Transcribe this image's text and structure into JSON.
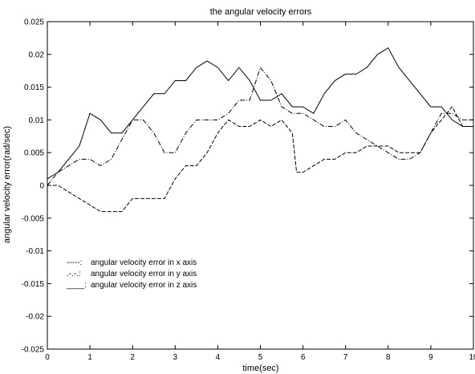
{
  "chart_data": {
    "type": "line",
    "title": "the angular velocity errors",
    "xlabel": "time(sec)",
    "ylabel": "angular velocity error(rad/sec)",
    "xlim": [
      0,
      10
    ],
    "ylim": [
      -0.025,
      0.025
    ],
    "x_ticks": [
      "0",
      "1",
      "2",
      "3",
      "4",
      "5",
      "6",
      "7",
      "8",
      "9",
      "10"
    ],
    "y_ticks": [
      "0.025",
      "0.02",
      "0.015",
      "0.01",
      "0.005",
      "0",
      "-0.005",
      "-0.01",
      "-0.015",
      "-0.02",
      "-0.025"
    ],
    "grid": false,
    "legend_position": "lower-left",
    "series": [
      {
        "name": "angular velocity error in x axis",
        "legend_prefix": "-----:",
        "style": "dashed",
        "x": [
          0,
          0.25,
          0.5,
          0.75,
          1.0,
          1.25,
          1.5,
          1.75,
          2.0,
          2.25,
          2.5,
          2.75,
          3.0,
          3.25,
          3.5,
          3.75,
          4.0,
          4.25,
          4.5,
          4.75,
          5.0,
          5.25,
          5.5,
          5.75,
          5.85,
          6.0,
          6.25,
          6.5,
          6.75,
          7.0,
          7.25,
          7.5,
          7.75,
          8.0,
          8.25,
          8.5,
          8.75,
          9.0,
          9.25,
          9.5,
          9.75,
          10.0
        ],
        "values": [
          0.0,
          0.0,
          -0.001,
          -0.002,
          -0.003,
          -0.004,
          -0.004,
          -0.004,
          -0.002,
          -0.002,
          -0.002,
          -0.002,
          0.001,
          0.003,
          0.003,
          0.005,
          0.008,
          0.01,
          0.009,
          0.009,
          0.01,
          0.009,
          0.01,
          0.008,
          0.002,
          0.002,
          0.003,
          0.004,
          0.004,
          0.005,
          0.005,
          0.006,
          0.006,
          0.006,
          0.005,
          0.005,
          0.005,
          0.008,
          0.01,
          0.012,
          0.009,
          0.009
        ]
      },
      {
        "name": "angular velocity error in y axis",
        "legend_prefix": ".-.-.:",
        "style": "dashdot",
        "x": [
          0,
          0.25,
          0.5,
          0.75,
          1.0,
          1.25,
          1.5,
          1.75,
          2.0,
          2.25,
          2.5,
          2.75,
          3.0,
          3.25,
          3.5,
          3.75,
          4.0,
          4.25,
          4.5,
          4.75,
          5.0,
          5.25,
          5.5,
          5.75,
          6.0,
          6.25,
          6.5,
          6.75,
          7.0,
          7.25,
          7.5,
          7.75,
          8.0,
          8.25,
          8.5,
          8.75,
          9.0,
          9.25,
          9.5,
          9.75,
          10.0
        ],
        "values": [
          0.0,
          0.002,
          0.003,
          0.004,
          0.004,
          0.003,
          0.004,
          0.007,
          0.01,
          0.01,
          0.008,
          0.005,
          0.005,
          0.008,
          0.01,
          0.01,
          0.01,
          0.011,
          0.013,
          0.013,
          0.018,
          0.016,
          0.012,
          0.011,
          0.011,
          0.01,
          0.009,
          0.009,
          0.01,
          0.008,
          0.007,
          0.006,
          0.005,
          0.004,
          0.004,
          0.005,
          0.008,
          0.011,
          0.011,
          0.01,
          0.01
        ]
      },
      {
        "name": "angular velocity error in z axis",
        "legend_prefix": "____:",
        "style": "solid",
        "x": [
          0,
          0.25,
          0.5,
          0.75,
          1.0,
          1.25,
          1.5,
          1.75,
          2.0,
          2.25,
          2.5,
          2.75,
          3.0,
          3.25,
          3.5,
          3.75,
          4.0,
          4.25,
          4.5,
          4.75,
          5.0,
          5.25,
          5.5,
          5.75,
          6.0,
          6.25,
          6.5,
          6.75,
          7.0,
          7.25,
          7.5,
          7.75,
          8.0,
          8.25,
          8.5,
          8.75,
          9.0,
          9.25,
          9.5,
          9.75,
          10.0
        ],
        "values": [
          0.001,
          0.002,
          0.004,
          0.006,
          0.011,
          0.01,
          0.008,
          0.008,
          0.01,
          0.012,
          0.014,
          0.014,
          0.016,
          0.016,
          0.018,
          0.019,
          0.018,
          0.016,
          0.018,
          0.016,
          0.013,
          0.013,
          0.014,
          0.012,
          0.012,
          0.011,
          0.014,
          0.016,
          0.017,
          0.017,
          0.018,
          0.02,
          0.021,
          0.018,
          0.016,
          0.014,
          0.012,
          0.012,
          0.01,
          0.009,
          0.009
        ]
      }
    ]
  }
}
